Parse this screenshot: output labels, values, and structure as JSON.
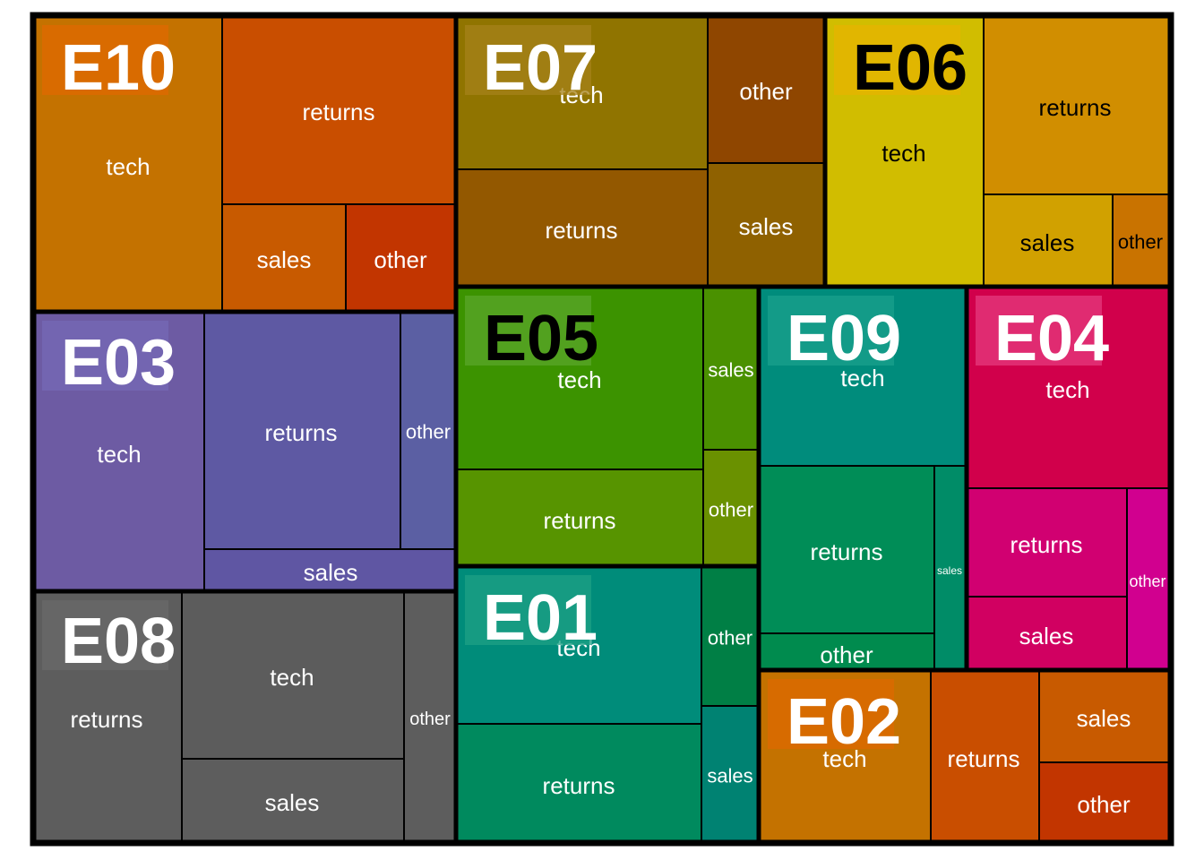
{
  "chart_data": {
    "type": "treemap",
    "title": "",
    "groups": [
      {
        "name": "E10",
        "label_color": "#ffffff",
        "badge_color": "#e06a00",
        "children": [
          {
            "name": "tech",
            "value": 68,
            "color": "#c47200"
          },
          {
            "name": "returns",
            "value": 60,
            "color": "#c94e00"
          },
          {
            "name": "sales",
            "value": 32,
            "color": "#c85a00"
          },
          {
            "name": "other",
            "value": 28,
            "color": "#c23500"
          }
        ]
      },
      {
        "name": "E03",
        "label_color": "#ffffff",
        "badge_color": "#7668b6",
        "children": [
          {
            "name": "tech",
            "value": 57,
            "color": "#6d5ba3"
          },
          {
            "name": "returns",
            "value": 50,
            "color": "#5e59a3"
          },
          {
            "name": "other",
            "value": 14,
            "color": "#5b5fa3"
          },
          {
            "name": "sales",
            "value": 11,
            "color": "#5f56a3"
          }
        ]
      },
      {
        "name": "E08",
        "label_color": "#ffffff",
        "badge_color": "#6a6a6a",
        "children": [
          {
            "name": "returns",
            "value": 44,
            "color": "#5d5d5d"
          },
          {
            "name": "tech",
            "value": 35,
            "color": "#5c5c5c"
          },
          {
            "name": "sales",
            "value": 22,
            "color": "#5d5d5d"
          },
          {
            "name": "other",
            "value": 15,
            "color": "#5d5d5d"
          }
        ]
      },
      {
        "name": "E07",
        "label_color": "#ffffff",
        "badge_color": "#a6821a",
        "children": [
          {
            "name": "tech",
            "value": 47,
            "color": "#907400"
          },
          {
            "name": "returns",
            "value": 45,
            "color": "#935800"
          },
          {
            "name": "other",
            "value": 24,
            "color": "#8f4600"
          },
          {
            "name": "sales",
            "value": 20,
            "color": "#8f6100"
          }
        ]
      },
      {
        "name": "E06",
        "label_color": "#000000",
        "badge_color": "#e6b400",
        "children": [
          {
            "name": "tech",
            "value": 53,
            "color": "#d1bd00"
          },
          {
            "name": "returns",
            "value": 38,
            "color": "#d18e00"
          },
          {
            "name": "sales",
            "value": 22,
            "color": "#d1a100"
          },
          {
            "name": "other",
            "value": 10,
            "color": "#c97300"
          }
        ]
      },
      {
        "name": "E05",
        "label_color": "#000000",
        "badge_color": "#5aa62a",
        "children": [
          {
            "name": "tech",
            "value": 54,
            "color": "#3c9300"
          },
          {
            "name": "returns",
            "value": 28,
            "color": "#579400"
          },
          {
            "name": "sales",
            "value": 11,
            "color": "#4a9100"
          },
          {
            "name": "other",
            "value": 8,
            "color": "#6a9100"
          }
        ]
      },
      {
        "name": "E01",
        "label_color": "#ffffff",
        "badge_color": "#1ea085",
        "children": [
          {
            "name": "tech",
            "value": 37,
            "color": "#008c7a"
          },
          {
            "name": "returns",
            "value": 33,
            "color": "#008a5e"
          },
          {
            "name": "other",
            "value": 10,
            "color": "#007f45"
          },
          {
            "name": "sales",
            "value": 9,
            "color": "#008272"
          }
        ]
      },
      {
        "name": "E09",
        "label_color": "#ffffff",
        "badge_color": "#1aa08c",
        "children": [
          {
            "name": "tech",
            "value": 30,
            "color": "#008c7c"
          },
          {
            "name": "returns",
            "value": 28,
            "color": "#008d57"
          },
          {
            "name": "sales",
            "value": 6,
            "color": "#008c67"
          },
          {
            "name": "other",
            "value": 5,
            "color": "#008b4e"
          }
        ]
      },
      {
        "name": "E04",
        "label_color": "#ffffff",
        "badge_color": "#e43a7e",
        "children": [
          {
            "name": "tech",
            "value": 34,
            "color": "#d1004b"
          },
          {
            "name": "returns",
            "value": 16,
            "color": "#d10071"
          },
          {
            "name": "sales",
            "value": 14,
            "color": "#d10061"
          },
          {
            "name": "other",
            "value": 7,
            "color": "#d1008f"
          }
        ]
      },
      {
        "name": "E02",
        "label_color": "#ffffff",
        "badge_color": "#de6a00",
        "children": [
          {
            "name": "tech",
            "value": 30,
            "color": "#c47200"
          },
          {
            "name": "returns",
            "value": 20,
            "color": "#c94e00"
          },
          {
            "name": "sales",
            "value": 10,
            "color": "#c85a00"
          },
          {
            "name": "other",
            "value": 10,
            "color": "#c23500"
          }
        ]
      }
    ]
  }
}
